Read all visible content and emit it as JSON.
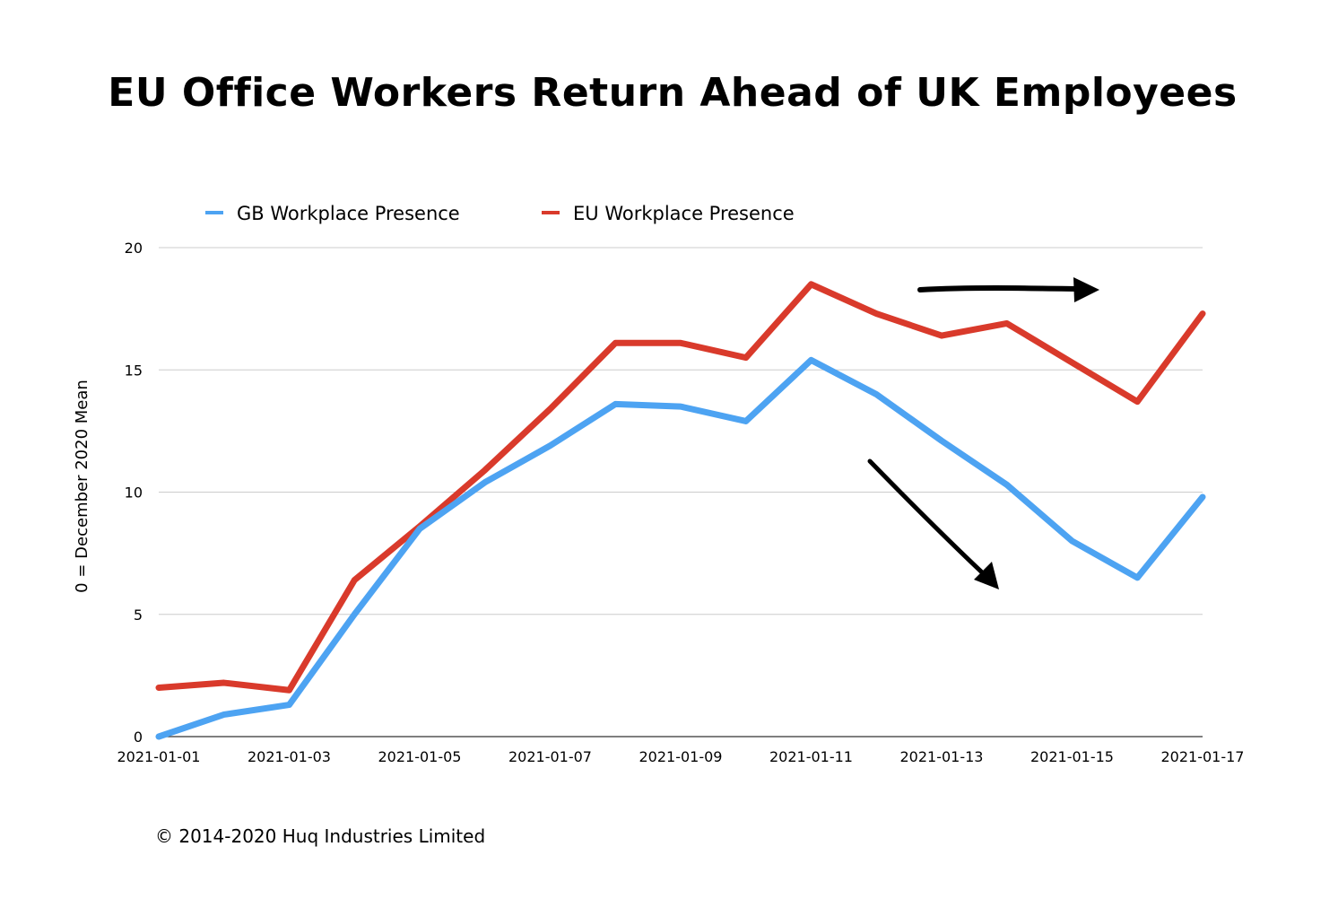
{
  "chart_data": {
    "type": "line",
    "title": "EU Office Workers Return Ahead of UK Employees",
    "xlabel": "",
    "ylabel": "0 = December 2020 Mean",
    "ylim": [
      0,
      20
    ],
    "yticks": [
      "0",
      "5",
      "10",
      "15",
      "20"
    ],
    "grid": true,
    "legend_position": "top-left",
    "x": [
      "2021-01-01",
      "2021-01-02",
      "2021-01-03",
      "2021-01-04",
      "2021-01-05",
      "2021-01-06",
      "2021-01-07",
      "2021-01-08",
      "2021-01-09",
      "2021-01-10",
      "2021-01-11",
      "2021-01-12",
      "2021-01-13",
      "2021-01-14",
      "2021-01-15",
      "2021-01-16",
      "2021-01-17"
    ],
    "xtick_labels": [
      "2021-01-01",
      "2021-01-03",
      "2021-01-05",
      "2021-01-07",
      "2021-01-09",
      "2021-01-11",
      "2021-01-13",
      "2021-01-15",
      "2021-01-17"
    ],
    "series": [
      {
        "name": "GB Workplace Presence",
        "color": "#4da3f2",
        "values": [
          0.0,
          0.9,
          1.3,
          5.0,
          8.5,
          10.4,
          11.9,
          13.6,
          13.5,
          12.9,
          15.4,
          14.0,
          12.1,
          10.3,
          8.0,
          6.5,
          9.8
        ]
      },
      {
        "name": "EU Workplace Presence",
        "color": "#d93a2b",
        "values": [
          2.0,
          2.2,
          1.9,
          6.4,
          8.6,
          10.9,
          13.4,
          16.1,
          16.1,
          15.5,
          18.5,
          17.3,
          16.4,
          16.9,
          15.3,
          13.7,
          17.3
        ]
      }
    ],
    "annotations": [
      {
        "type": "arrow",
        "direction": "right",
        "target_series": "EU Workplace Presence",
        "color": "#000000"
      },
      {
        "type": "arrow",
        "direction": "down-right",
        "target_series": "GB Workplace Presence",
        "color": "#000000"
      }
    ]
  },
  "footer": {
    "copyright": "© 2014-2020 Huq Industries Limited"
  }
}
